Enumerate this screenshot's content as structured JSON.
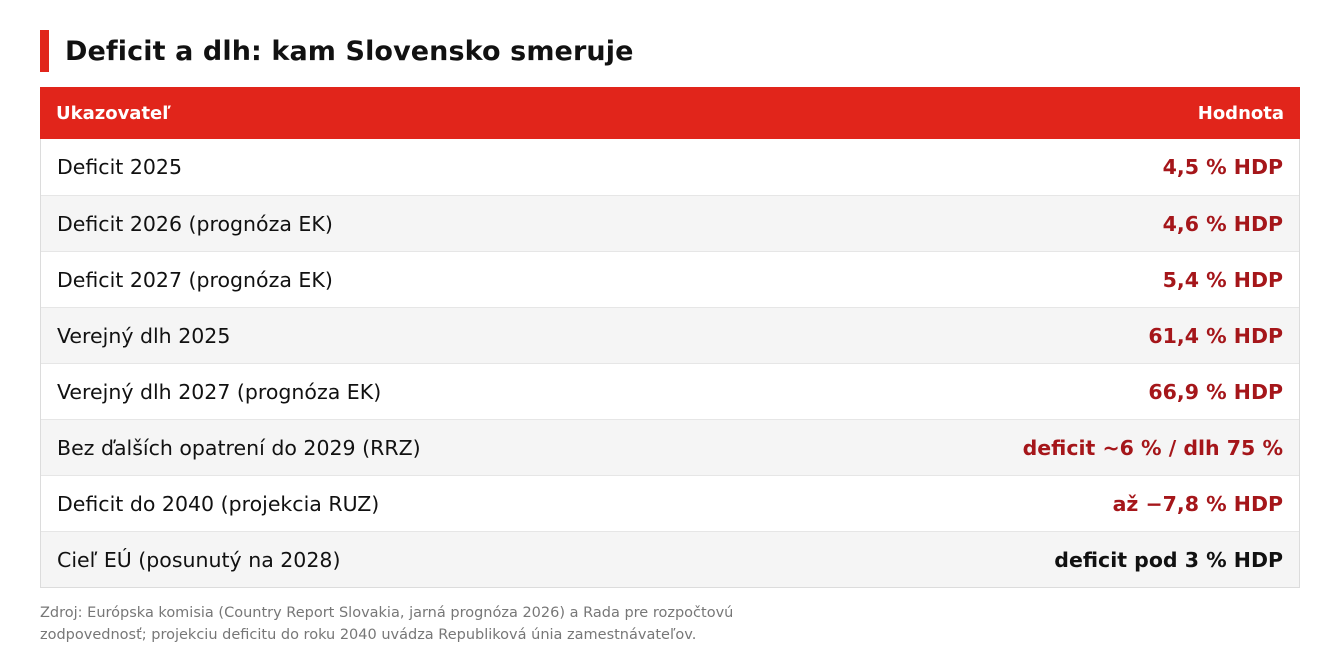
{
  "title": "Deficit a dlh: kam Slovensko smeruje",
  "table": {
    "header": {
      "indicator": "Ukazovateľ",
      "value": "Hodnota"
    },
    "rows": [
      {
        "indicator": "Deficit 2025",
        "value": "4,5 % HDP"
      },
      {
        "indicator": "Deficit 2026 (prognóza EK)",
        "value": "4,6 % HDP"
      },
      {
        "indicator": "Deficit 2027 (prognóza EK)",
        "value": "5,4 % HDP"
      },
      {
        "indicator": "Verejný dlh 2025",
        "value": "61,4 % HDP"
      },
      {
        "indicator": "Verejný dlh 2027 (prognóza EK)",
        "value": "66,9 % HDP"
      },
      {
        "indicator": "Bez ďalších opatrení do 2029 (RRZ)",
        "value": "deficit ~6 % / dlh 75 %"
      },
      {
        "indicator": "Deficit do 2040 (projekcia RUZ)",
        "value": "až −7,8 % HDP"
      },
      {
        "indicator": "Cieľ EÚ (posunutý na 2028)",
        "value": "deficit pod 3 % HDP"
      }
    ]
  },
  "source_line_1": "Zdroj: Európska komisia (Country Report Slovakia, jarná prognóza 2026) a Rada pre rozpočtovú",
  "source_line_2": "zodpovednosť; projekciu deficitu do roku 2040 uvádza Republiková únia zamestnávateľov.",
  "colors": {
    "accent": "#e1251b",
    "value_text": "#a5161a",
    "target_value_text": "#111111",
    "alt_row": "#f5f5f5",
    "source_text": "#777777"
  }
}
